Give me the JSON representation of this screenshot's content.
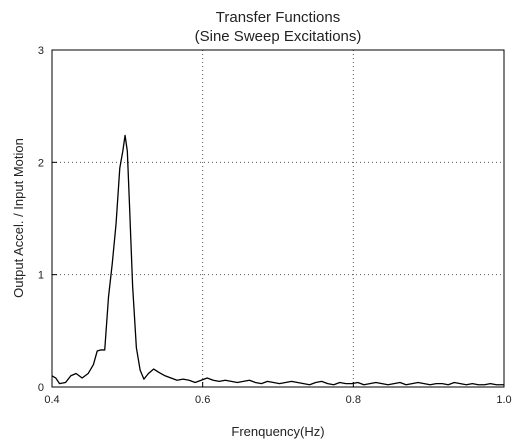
{
  "chart_data": {
    "type": "line",
    "title": "Transfer Functions",
    "subtitle": "(Sine Sweep Excitations)",
    "xlabel": "Frenquency(Hz)",
    "ylabel": "Output Accel. / Input Motion",
    "xlim": [
      0.4,
      1.0
    ],
    "ylim": [
      0,
      3
    ],
    "x_ticks": [
      0.4,
      0.6,
      0.8,
      1.0
    ],
    "x_tick_labels": [
      "0.4",
      "0.6",
      "0.8",
      "1.0"
    ],
    "y_ticks": [
      0,
      1,
      2,
      3
    ],
    "y_tick_labels": [
      "0",
      "1",
      "2",
      "3"
    ],
    "grid": "dotted",
    "legend": "none",
    "line_color": "#000000",
    "series": [
      {
        "x": [
          0.4,
          0.405,
          0.41,
          0.418,
          0.425,
          0.432,
          0.44,
          0.448,
          0.455,
          0.46,
          0.465,
          0.47,
          0.475,
          0.48,
          0.485,
          0.49,
          0.494,
          0.497,
          0.5,
          0.503,
          0.507,
          0.512,
          0.517,
          0.522,
          0.528,
          0.535,
          0.542,
          0.55,
          0.558,
          0.566,
          0.574,
          0.582,
          0.59,
          0.598,
          0.606,
          0.614,
          0.622,
          0.63,
          0.638,
          0.646,
          0.654,
          0.662,
          0.67,
          0.678,
          0.686,
          0.694,
          0.702,
          0.71,
          0.718,
          0.726,
          0.734,
          0.742,
          0.75,
          0.758,
          0.766,
          0.774,
          0.782,
          0.79,
          0.798,
          0.806,
          0.814,
          0.822,
          0.83,
          0.838,
          0.846,
          0.854,
          0.862,
          0.87,
          0.878,
          0.886,
          0.894,
          0.902,
          0.91,
          0.918,
          0.926,
          0.934,
          0.942,
          0.95,
          0.958,
          0.966,
          0.974,
          0.982,
          0.99,
          1.0
        ],
        "y": [
          0.1,
          0.08,
          0.03,
          0.04,
          0.1,
          0.12,
          0.08,
          0.12,
          0.2,
          0.32,
          0.33,
          0.33,
          0.8,
          1.1,
          1.45,
          1.95,
          2.1,
          2.24,
          2.1,
          1.6,
          0.9,
          0.35,
          0.15,
          0.07,
          0.12,
          0.16,
          0.13,
          0.1,
          0.08,
          0.06,
          0.07,
          0.06,
          0.04,
          0.06,
          0.08,
          0.06,
          0.05,
          0.06,
          0.05,
          0.04,
          0.05,
          0.06,
          0.04,
          0.03,
          0.05,
          0.04,
          0.03,
          0.04,
          0.05,
          0.04,
          0.03,
          0.02,
          0.04,
          0.05,
          0.03,
          0.02,
          0.04,
          0.03,
          0.03,
          0.04,
          0.02,
          0.03,
          0.04,
          0.03,
          0.02,
          0.03,
          0.04,
          0.02,
          0.03,
          0.04,
          0.03,
          0.02,
          0.03,
          0.03,
          0.02,
          0.04,
          0.03,
          0.02,
          0.03,
          0.02,
          0.02,
          0.03,
          0.02,
          0.02
        ]
      }
    ]
  }
}
